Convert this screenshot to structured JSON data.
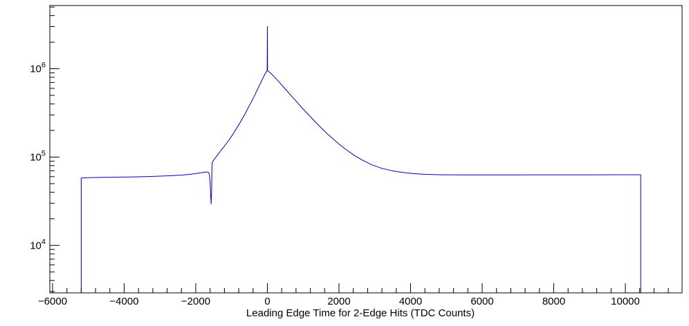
{
  "chart_data": {
    "type": "line",
    "title": "",
    "xlabel": "Leading Edge Time for 2-Edge Hits (TDC Counts)",
    "ylabel": "",
    "y_scale": "log",
    "grid": false,
    "legend": "none",
    "x_range": [
      -6077,
      11585
    ],
    "y_range": [
      2900,
      5200000
    ],
    "x_major_step": 2000,
    "x_minor_step": 400,
    "x_ticks": [
      {
        "value": -6000,
        "label": "−6000"
      },
      {
        "value": -4000,
        "label": "−4000"
      },
      {
        "value": -2000,
        "label": "−2000"
      },
      {
        "value": 0,
        "label": "0"
      },
      {
        "value": 2000,
        "label": "2000"
      },
      {
        "value": 4000,
        "label": "4000"
      },
      {
        "value": 6000,
        "label": "6000"
      },
      {
        "value": 8000,
        "label": "8000"
      },
      {
        "value": 10000,
        "label": "10000"
      }
    ],
    "y_tick_exponents": [
      4,
      5,
      6
    ],
    "line_color": "#0000aa",
    "axis_color": "#000000",
    "background_color": "#ffffff",
    "points": [
      [
        -5200,
        2900
      ],
      [
        -5200,
        58000
      ],
      [
        -5000,
        58500
      ],
      [
        -4600,
        59000
      ],
      [
        -4200,
        59200
      ],
      [
        -3800,
        59500
      ],
      [
        -3400,
        60000
      ],
      [
        -3000,
        60800
      ],
      [
        -2700,
        61500
      ],
      [
        -2400,
        62500
      ],
      [
        -2200,
        63500
      ],
      [
        -2000,
        65000
      ],
      [
        -1870,
        66200
      ],
      [
        -1780,
        67200
      ],
      [
        -1700,
        67800
      ],
      [
        -1650,
        67500
      ],
      [
        -1620,
        64000
      ],
      [
        -1600,
        52000
      ],
      [
        -1585,
        38000
      ],
      [
        -1570,
        29500
      ],
      [
        -1558,
        40000
      ],
      [
        -1550,
        70000
      ],
      [
        -1542,
        86000
      ],
      [
        -1520,
        90000
      ],
      [
        -1480,
        95000
      ],
      [
        -1420,
        102000
      ],
      [
        -1350,
        111000
      ],
      [
        -1280,
        121000
      ],
      [
        -1200,
        133000
      ],
      [
        -1120,
        147000
      ],
      [
        -1040,
        163000
      ],
      [
        -960,
        182000
      ],
      [
        -880,
        205000
      ],
      [
        -800,
        232000
      ],
      [
        -720,
        263000
      ],
      [
        -640,
        300000
      ],
      [
        -560,
        345000
      ],
      [
        -480,
        398000
      ],
      [
        -400,
        460000
      ],
      [
        -320,
        535000
      ],
      [
        -240,
        625000
      ],
      [
        -160,
        730000
      ],
      [
        -100,
        820000
      ],
      [
        -60,
        880000
      ],
      [
        -30,
        920000
      ],
      [
        -12,
        945000
      ],
      [
        -6,
        950000
      ],
      [
        0,
        3000000
      ],
      [
        6,
        950000
      ],
      [
        40,
        930000
      ],
      [
        120,
        870000
      ],
      [
        220,
        790000
      ],
      [
        340,
        700000
      ],
      [
        470,
        610000
      ],
      [
        620,
        520000
      ],
      [
        780,
        440000
      ],
      [
        950,
        368000
      ],
      [
        1130,
        307000
      ],
      [
        1320,
        255000
      ],
      [
        1520,
        211000
      ],
      [
        1730,
        175000
      ],
      [
        1950,
        146000
      ],
      [
        2180,
        123000
      ],
      [
        2420,
        105000
      ],
      [
        2670,
        91500
      ],
      [
        2930,
        81500
      ],
      [
        3200,
        74500
      ],
      [
        3480,
        70000
      ],
      [
        3770,
        67000
      ],
      [
        4070,
        65000
      ],
      [
        4380,
        63800
      ],
      [
        4700,
        63200
      ],
      [
        5100,
        62900
      ],
      [
        5600,
        62800
      ],
      [
        6200,
        62800
      ],
      [
        6900,
        62800
      ],
      [
        7600,
        62900
      ],
      [
        8300,
        63000
      ],
      [
        9000,
        63000
      ],
      [
        9700,
        63100
      ],
      [
        10200,
        63100
      ],
      [
        10430,
        63100
      ],
      [
        10430,
        2900
      ]
    ]
  }
}
